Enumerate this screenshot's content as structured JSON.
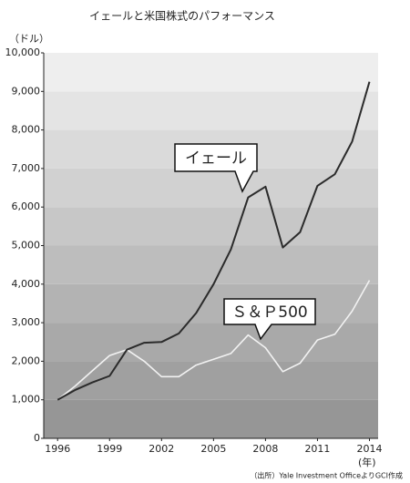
{
  "chart_data": {
    "type": "line",
    "title": "イェールと米国株式のパフォーマンス",
    "y_label": "（ドル）",
    "x_label": "(年)",
    "source": "（出所）Yale Investment OfficeよりGCI作成",
    "x": [
      1996,
      1997,
      1998,
      1999,
      2000,
      2001,
      2002,
      2003,
      2004,
      2005,
      2006,
      2007,
      2008,
      2009,
      2010,
      2011,
      2012,
      2013,
      2014
    ],
    "series": [
      {
        "name": "イェール",
        "color": "#2b2b2b",
        "values": [
          1000,
          1250,
          1450,
          1620,
          2300,
          2480,
          2500,
          2720,
          3250,
          4000,
          4900,
          6250,
          6530,
          4950,
          5350,
          6550,
          6850,
          7700,
          9250
        ]
      },
      {
        "name": "Ｓ＆Ｐ500",
        "color": "#f2f2f2",
        "values": [
          1000,
          1350,
          1750,
          2150,
          2300,
          2000,
          1600,
          1600,
          1900,
          2050,
          2200,
          2680,
          2350,
          1730,
          1950,
          2550,
          2700,
          3300,
          4100
        ]
      }
    ],
    "xlim": [
      1995.2,
      2014.5
    ],
    "xticks": [
      1996,
      1999,
      2002,
      2005,
      2008,
      2011,
      2014
    ],
    "ylim": [
      0,
      10000
    ],
    "yticks": [
      0,
      {
        "value": 1000,
        "label": "1,000"
      },
      {
        "value": 2000,
        "label": "2,000"
      },
      {
        "value": 3000,
        "label": "3,000"
      },
      {
        "value": 4000,
        "label": "4,000"
      },
      {
        "value": 5000,
        "label": "5,000"
      },
      {
        "value": 6000,
        "label": "6,000"
      },
      {
        "value": 7000,
        "label": "7,000"
      },
      {
        "value": 8000,
        "label": "8,000"
      },
      {
        "value": 9000,
        "label": "9,000"
      },
      {
        "value": 10000,
        "label": "10,000"
      }
    ]
  }
}
